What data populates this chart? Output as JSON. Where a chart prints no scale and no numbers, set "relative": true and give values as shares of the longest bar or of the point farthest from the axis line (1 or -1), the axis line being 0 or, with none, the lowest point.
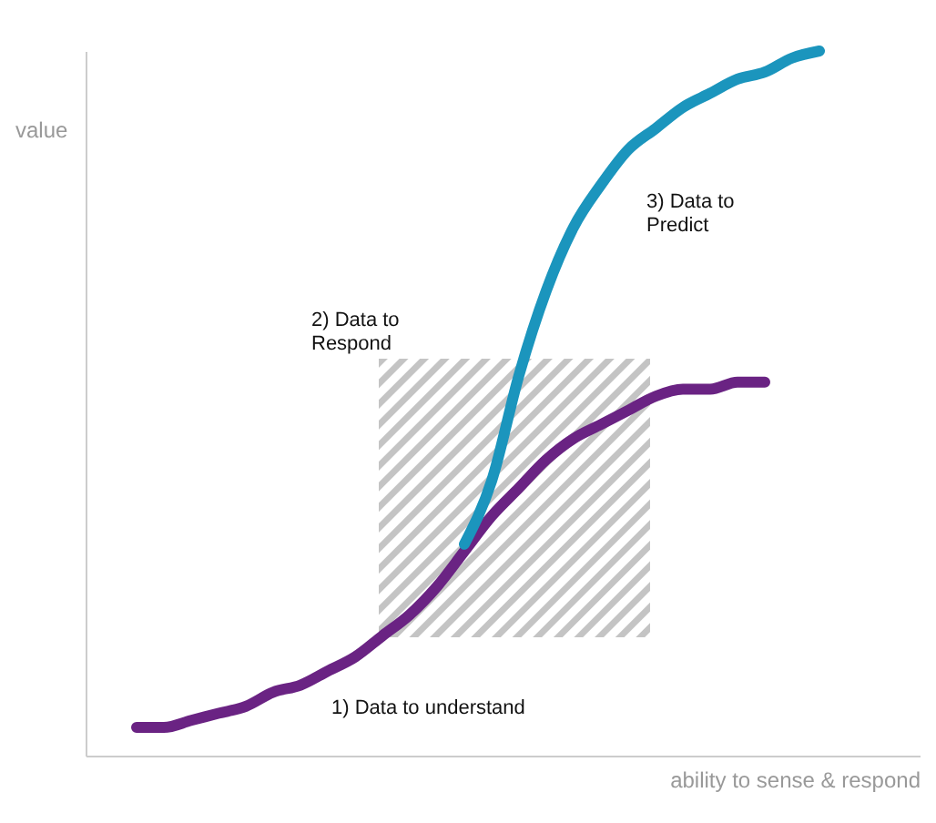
{
  "chart_data": {
    "type": "line",
    "relative": true,
    "xlabel": "ability to sense & respond",
    "ylabel": "value",
    "categories": [
      null,
      null,
      null,
      null,
      null,
      null,
      null,
      null,
      null,
      null,
      null,
      null,
      null,
      null,
      null,
      null,
      null,
      null,
      null,
      null,
      null,
      null,
      null,
      null,
      null,
      null
    ],
    "series": [
      {
        "color": "#6a2383",
        "values": [
          0.04,
          0.04,
          0.05,
          0.06,
          0.07,
          0.09,
          0.1,
          0.12,
          0.14,
          0.17,
          0.2,
          0.24,
          0.29,
          0.34,
          0.38,
          0.42,
          0.45,
          0.47,
          0.49,
          0.51,
          0.52,
          0.52,
          0.53,
          0.53,
          null,
          null
        ]
      },
      {
        "color": "#1b95bd",
        "values": [
          null,
          null,
          null,
          null,
          null,
          null,
          null,
          null,
          null,
          null,
          null,
          null,
          0.3,
          0.39,
          0.54,
          0.66,
          0.75,
          0.81,
          0.86,
          0.89,
          0.92,
          0.94,
          0.96,
          0.97,
          0.99,
          1
        ]
      }
    ],
    "annotations": [
      "1) Data to understand",
      "2) Data to\nRespond",
      "3) Data to\nPredict"
    ]
  }
}
